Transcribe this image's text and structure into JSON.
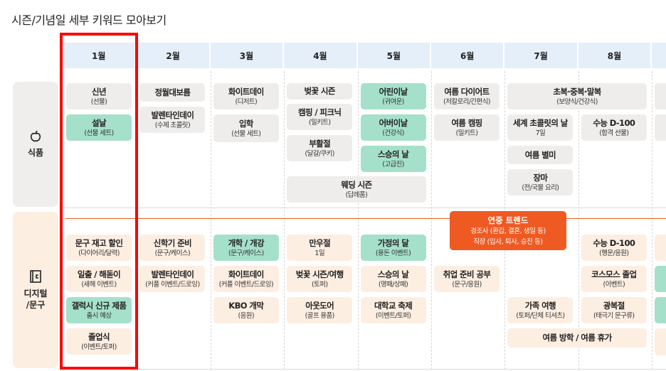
{
  "title": "시즌/기념일 세부 키워드 모아보기",
  "months": [
    "1월",
    "2월",
    "3월",
    "4월",
    "5월",
    "6월",
    "7월",
    "8월",
    ""
  ],
  "sections": [
    {
      "label": "식품",
      "icon": "apple-icon",
      "color": "#f0eeec"
    },
    {
      "label": "디지털\n/문구",
      "icon": "notebook-icon",
      "color": "#fdeee2"
    }
  ],
  "colors": {
    "header": "#e4effa",
    "grey": "#efedeb",
    "green": "#a5e0cb",
    "beige": "#fdeee2",
    "trend": "#ef5a22",
    "highlight": "#ff0000"
  },
  "highlighted_month": "1월",
  "food_cards": [
    {
      "title": "신년",
      "sub": "(선물)",
      "style": "grey"
    },
    {
      "title": "설날",
      "sub": "(선물 세트)",
      "style": "green"
    },
    {
      "title": "정월대보름",
      "sub": "",
      "style": "grey"
    },
    {
      "title": "발렌타인데이",
      "sub": "(수제 초콜릿)",
      "style": "grey"
    },
    {
      "title": "화이트데이",
      "sub": "(디저트)",
      "style": "grey"
    },
    {
      "title": "입학",
      "sub": "(선물 세트)",
      "style": "grey"
    },
    {
      "title": "벚꽃 시즌",
      "sub": "",
      "style": "grey"
    },
    {
      "title": "캠핑 / 피크닉",
      "sub": "(밀키트)",
      "style": "grey"
    },
    {
      "title": "부활절",
      "sub": "(달걀/쿠키)",
      "style": "grey"
    },
    {
      "title": "웨딩 시즌",
      "sub": "(답례품)",
      "style": "grey"
    },
    {
      "title": "어린이날",
      "sub": "(귀여운)",
      "style": "green"
    },
    {
      "title": "어버이날",
      "sub": "(건강식)",
      "style": "green"
    },
    {
      "title": "스승의 날",
      "sub": "(고급진)",
      "style": "green"
    },
    {
      "title": "여름 다이어트",
      "sub": "(저칼로리/간편식)",
      "style": "grey"
    },
    {
      "title": "여름 캠핑",
      "sub": "(밀키트)",
      "style": "grey"
    },
    {
      "title": "초복·중복·말복",
      "sub": "(보양식/건강식)",
      "style": "grey"
    },
    {
      "title": "세계 초콜릿의 날",
      "sub": "7일",
      "style": "grey"
    },
    {
      "title": "수능 D-100",
      "sub": "(합격 선물)",
      "style": "grey"
    },
    {
      "title": "여름 별미",
      "sub": "",
      "style": "grey"
    },
    {
      "title": "장마",
      "sub": "(전/국물 요리)",
      "style": "grey"
    },
    {
      "title": "",
      "sub": "",
      "style": "grey"
    },
    {
      "title": "",
      "sub": "",
      "style": "grey"
    }
  ],
  "trend": {
    "title": "연중 트렌드",
    "line1": "경조사 (환갑, 결혼, 생일 등)",
    "line2": "직장 (입사, 퇴사, 승진 등)"
  },
  "digital_cards": [
    {
      "title": "문구 재고 할인",
      "sub": "(다이어리/달력)",
      "style": "beige"
    },
    {
      "title": "일출 / 해돋이",
      "sub": "(새해 이벤트)",
      "style": "beige"
    },
    {
      "title": "갤럭시 신규 제품",
      "sub": "출시 예상",
      "style": "green"
    },
    {
      "title": "졸업식",
      "sub": "(이벤트/토퍼)",
      "style": "beige"
    },
    {
      "title": "신학기 준비",
      "sub": "(문구/케이스)",
      "style": "beige"
    },
    {
      "title": "발렌타인데이",
      "sub": "(커플 이벤트/드로잉)",
      "style": "beige"
    },
    {
      "title": "개학 / 개강",
      "sub": "(문구/케이스)",
      "style": "green"
    },
    {
      "title": "화이트데이",
      "sub": "(커플 이벤트/드로잉)",
      "style": "beige"
    },
    {
      "title": "KBO 개막",
      "sub": "(응원)",
      "style": "beige"
    },
    {
      "title": "만우절",
      "sub": "1일",
      "style": "beige"
    },
    {
      "title": "벚꽃 시즌/여행",
      "sub": "(토퍼)",
      "style": "beige"
    },
    {
      "title": "아웃도어",
      "sub": "(골프 용품)",
      "style": "beige"
    },
    {
      "title": "가정의 달",
      "sub": "(용돈 이벤트)",
      "style": "green"
    },
    {
      "title": "스승의 날",
      "sub": "(명패/상패)",
      "style": "beige"
    },
    {
      "title": "대학교 축제",
      "sub": "(이벤트/토퍼)",
      "style": "beige"
    },
    {
      "title": "취업 준비 공부",
      "sub": "(문구/응원)",
      "style": "beige"
    },
    {
      "title": "가족 여행",
      "sub": "(토퍼/단체 티셔츠)",
      "style": "beige"
    },
    {
      "title": "여름 방학 / 여름 휴가",
      "sub": "",
      "style": "beige"
    },
    {
      "title": "수능 D-100",
      "sub": "(행운/응원)",
      "style": "beige"
    },
    {
      "title": "코스모스 졸업",
      "sub": "(이벤트)",
      "style": "beige"
    },
    {
      "title": "광복절",
      "sub": "(태극기 문구류)",
      "style": "beige"
    },
    {
      "title": "",
      "sub": "",
      "style": "beige"
    },
    {
      "title": "",
      "sub": "",
      "style": "green"
    },
    {
      "title": "",
      "sub": "",
      "style": "green"
    },
    {
      "title": "",
      "sub": "",
      "style": "beige"
    }
  ]
}
